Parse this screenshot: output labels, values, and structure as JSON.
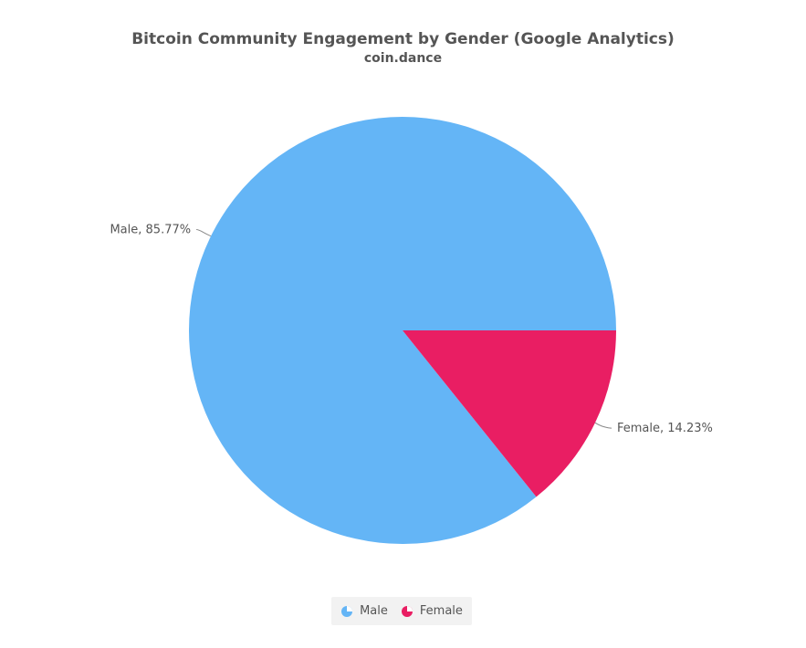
{
  "chart_data": {
    "type": "pie",
    "title": "Bitcoin Community Engagement by Gender (Google Analytics)",
    "subtitle": "coin.dance",
    "slices": [
      {
        "name": "Male",
        "value": 85.77,
        "color": "#64B5F6",
        "label": "Male, 85.77%"
      },
      {
        "name": "Female",
        "value": 14.23,
        "color": "#E91E63",
        "label": "Female, 14.23%"
      }
    ],
    "legend": {
      "placement": "bottom-center",
      "items": [
        "Male",
        "Female"
      ]
    }
  }
}
